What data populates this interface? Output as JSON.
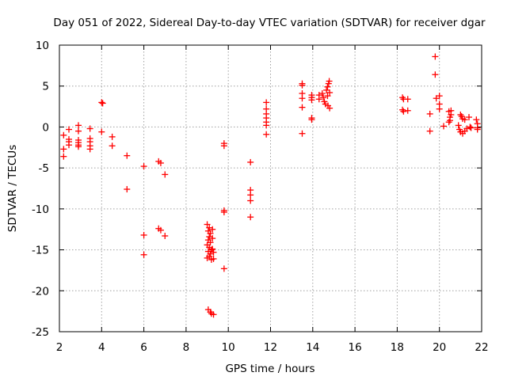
{
  "chart_data": {
    "type": "scatter",
    "title": "Day 051 of 2022, Sidereal Day-to-day VTEC variation (SDTVAR) for receiver dgar",
    "xlabel": "GPS time / hours",
    "ylabel": "SDTVAR / TECUs",
    "xlim": [
      2,
      22
    ],
    "ylim": [
      -25,
      10
    ],
    "xticks": [
      2,
      4,
      6,
      8,
      10,
      12,
      14,
      16,
      18,
      20,
      22
    ],
    "yticks": [
      -25,
      -20,
      -15,
      -10,
      -5,
      0,
      5,
      10
    ],
    "grid": true,
    "legend": "none",
    "marker": "+",
    "color": "#ff0000",
    "series": [
      {
        "name": "SDTVAR",
        "points": [
          [
            2.2,
            -1.0
          ],
          [
            2.2,
            -2.7
          ],
          [
            2.2,
            -3.6
          ],
          [
            2.45,
            -0.3
          ],
          [
            2.45,
            -1.5
          ],
          [
            2.45,
            -1.8
          ],
          [
            2.45,
            -2.2
          ],
          [
            2.9,
            0.2
          ],
          [
            2.9,
            -0.5
          ],
          [
            2.9,
            -1.6
          ],
          [
            2.9,
            -1.9
          ],
          [
            2.9,
            -2.2
          ],
          [
            2.9,
            -2.4
          ],
          [
            3.45,
            -0.2
          ],
          [
            3.45,
            -1.4
          ],
          [
            3.45,
            -1.8
          ],
          [
            3.45,
            -2.3
          ],
          [
            3.45,
            -2.7
          ],
          [
            4.0,
            3.0
          ],
          [
            4.05,
            2.9
          ],
          [
            4.0,
            -0.6
          ],
          [
            4.5,
            -1.2
          ],
          [
            4.5,
            -2.3
          ],
          [
            5.2,
            -3.5
          ],
          [
            5.2,
            -7.6
          ],
          [
            6.0,
            -4.8
          ],
          [
            6.0,
            -13.2
          ],
          [
            6.0,
            -15.6
          ],
          [
            6.7,
            -4.2
          ],
          [
            6.8,
            -4.4
          ],
          [
            6.7,
            -12.4
          ],
          [
            6.8,
            -12.6
          ],
          [
            7.0,
            -5.8
          ],
          [
            7.0,
            -13.3
          ],
          [
            9.0,
            -11.9
          ],
          [
            9.1,
            -12.3
          ],
          [
            9.05,
            -12.7
          ],
          [
            9.15,
            -13.0
          ],
          [
            9.1,
            -13.4
          ],
          [
            9.05,
            -13.8
          ],
          [
            9.15,
            -14.1
          ],
          [
            9.0,
            -14.4
          ],
          [
            9.1,
            -14.7
          ],
          [
            9.2,
            -15.0
          ],
          [
            9.05,
            -15.2
          ],
          [
            9.15,
            -15.5
          ],
          [
            9.1,
            -15.8
          ],
          [
            9.0,
            -16.0
          ],
          [
            9.2,
            -16.2
          ],
          [
            9.25,
            -12.5
          ],
          [
            9.25,
            -13.6
          ],
          [
            9.25,
            -14.9
          ],
          [
            9.3,
            -15.3
          ],
          [
            9.3,
            -16.1
          ],
          [
            9.05,
            -22.3
          ],
          [
            9.15,
            -22.6
          ],
          [
            9.2,
            -22.8
          ],
          [
            9.3,
            -22.9
          ],
          [
            9.8,
            -2.0
          ],
          [
            9.8,
            -2.3
          ],
          [
            9.8,
            -10.2
          ],
          [
            9.8,
            -10.4
          ],
          [
            9.8,
            -17.3
          ],
          [
            11.05,
            -4.3
          ],
          [
            11.05,
            -7.7
          ],
          [
            11.05,
            -8.3
          ],
          [
            11.05,
            -9.0
          ],
          [
            11.05,
            -11.0
          ],
          [
            11.8,
            3.0
          ],
          [
            11.8,
            2.2
          ],
          [
            11.8,
            1.6
          ],
          [
            11.8,
            1.1
          ],
          [
            11.8,
            0.6
          ],
          [
            11.8,
            0.2
          ],
          [
            11.8,
            -0.9
          ],
          [
            13.5,
            5.3
          ],
          [
            13.5,
            5.1
          ],
          [
            13.5,
            4.1
          ],
          [
            13.5,
            3.5
          ],
          [
            13.5,
            2.4
          ],
          [
            13.5,
            -0.8
          ],
          [
            13.95,
            3.9
          ],
          [
            13.95,
            3.6
          ],
          [
            13.95,
            3.3
          ],
          [
            13.95,
            1.1
          ],
          [
            13.95,
            0.9
          ],
          [
            14.3,
            3.9
          ],
          [
            14.3,
            3.4
          ],
          [
            14.45,
            4.1
          ],
          [
            14.5,
            3.6
          ],
          [
            14.55,
            3.1
          ],
          [
            14.6,
            2.8
          ],
          [
            14.65,
            4.5
          ],
          [
            14.7,
            4.9
          ],
          [
            14.72,
            2.6
          ],
          [
            14.75,
            5.3
          ],
          [
            14.78,
            5.6
          ],
          [
            14.8,
            2.3
          ],
          [
            14.8,
            4.2
          ],
          [
            14.7,
            3.8
          ],
          [
            18.25,
            3.6
          ],
          [
            18.3,
            3.4
          ],
          [
            18.25,
            2.1
          ],
          [
            18.3,
            1.9
          ],
          [
            18.5,
            3.4
          ],
          [
            18.5,
            2.0
          ],
          [
            19.55,
            -0.5
          ],
          [
            19.55,
            1.6
          ],
          [
            19.8,
            8.6
          ],
          [
            19.8,
            6.4
          ],
          [
            19.85,
            3.5
          ],
          [
            20.0,
            3.8
          ],
          [
            20.0,
            2.8
          ],
          [
            20.0,
            2.2
          ],
          [
            20.2,
            0.1
          ],
          [
            20.45,
            1.9
          ],
          [
            20.5,
            1.2
          ],
          [
            20.5,
            0.8
          ],
          [
            20.55,
            2.0
          ],
          [
            20.55,
            1.5
          ],
          [
            20.45,
            0.6
          ],
          [
            20.9,
            0.2
          ],
          [
            20.95,
            -0.3
          ],
          [
            21.0,
            1.5
          ],
          [
            21.0,
            -0.6
          ],
          [
            21.05,
            1.3
          ],
          [
            21.1,
            1.0
          ],
          [
            21.1,
            -0.8
          ],
          [
            21.2,
            0.9
          ],
          [
            21.2,
            -0.5
          ],
          [
            21.3,
            -0.2
          ],
          [
            21.4,
            1.2
          ],
          [
            21.45,
            0.0
          ],
          [
            21.5,
            -0.1
          ],
          [
            21.75,
            0.9
          ],
          [
            21.8,
            0.4
          ],
          [
            21.8,
            -0.1
          ],
          [
            21.8,
            -0.3
          ]
        ]
      }
    ]
  }
}
